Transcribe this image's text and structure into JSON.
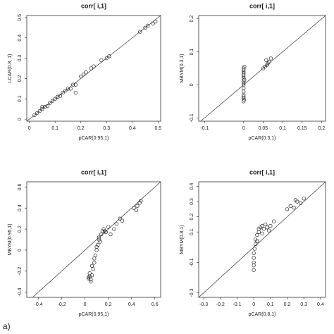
{
  "caption": "a)",
  "chart_data": [
    {
      "type": "scatter",
      "title": "corr[ i,1]",
      "xlabel": "pCAR(0.95,1)",
      "ylabel": "LCAR(0.8, 1)",
      "diagonal": true,
      "color": "#222222",
      "x": [
        0.02,
        0.03,
        0.04,
        0.05,
        0.06,
        0.07,
        0.08,
        0.09,
        0.1,
        0.11,
        0.12,
        0.13,
        0.14,
        0.15,
        0.16,
        0.17,
        0.18,
        0.2,
        0.21,
        0.22,
        0.24,
        0.25,
        0.28,
        0.3,
        0.31,
        0.43,
        0.45,
        0.46,
        0.48,
        0.49,
        0.11,
        0.05,
        0.18
      ],
      "y": [
        0.02,
        0.03,
        0.04,
        0.05,
        0.06,
        0.065,
        0.08,
        0.09,
        0.1,
        0.11,
        0.115,
        0.13,
        0.14,
        0.15,
        0.15,
        0.17,
        0.17,
        0.21,
        0.22,
        0.23,
        0.25,
        0.26,
        0.29,
        0.3,
        0.31,
        0.43,
        0.45,
        0.46,
        0.47,
        0.48,
        0.11,
        0.06,
        0.13
      ],
      "xlim": [
        -0.01,
        0.51
      ],
      "ylim": [
        -0.01,
        0.51
      ],
      "xticks": [
        0.0,
        0.1,
        0.2,
        0.3,
        0.4,
        0.5
      ],
      "yticks": [
        0.0,
        0.1,
        0.2,
        0.3,
        0.4,
        0.5
      ]
    },
    {
      "type": "scatter",
      "title": "corr[ i,1]",
      "xlabel": "pCAR(0.3,1)",
      "ylabel": "MBYM(0.3,1)",
      "diagonal": true,
      "color": "#222222",
      "x": [
        0,
        0,
        0,
        0,
        0,
        0,
        0,
        0,
        0,
        0,
        0,
        0,
        0,
        0,
        0,
        0,
        0.002,
        0.002,
        0.001,
        0.05,
        0.055,
        0.06,
        0.062,
        0.065,
        0.07,
        0.058
      ],
      "y": [
        -0.05,
        -0.04,
        -0.035,
        -0.03,
        -0.02,
        -0.01,
        0.0,
        0.005,
        0.01,
        0.02,
        0.025,
        0.03,
        0.035,
        0.04,
        0.045,
        0.05,
        0.055,
        0.015,
        -0.045,
        0.05,
        0.055,
        0.06,
        0.065,
        0.07,
        0.08,
        0.075
      ],
      "xlim": [
        -0.115,
        0.21
      ],
      "ylim": [
        -0.11,
        0.21
      ],
      "xticks": [
        -0.1,
        0.0,
        0.05,
        0.1,
        0.15,
        0.2
      ],
      "yticks": [
        -0.1,
        0.0,
        0.1,
        0.2
      ]
    },
    {
      "type": "scatter",
      "title": "corr[ i,1]",
      "xlabel": "pCAR(0.95,1)",
      "ylabel": "MBYM(0.95,1)",
      "diagonal": true,
      "color": "#222222",
      "x": [
        0.03,
        0.04,
        0.05,
        0.04,
        0.06,
        0.05,
        0.03,
        0.07,
        0.08,
        0.06,
        0.09,
        0.1,
        0.08,
        0.11,
        0.12,
        0.1,
        0.13,
        0.14,
        0.12,
        0.15,
        0.16,
        0.17,
        0.18,
        0.2,
        0.22,
        0.25,
        0.27,
        0.3,
        0.32,
        0.42,
        0.45,
        0.47,
        0.48,
        0.44
      ],
      "y": [
        -0.27,
        -0.25,
        -0.28,
        -0.22,
        -0.24,
        -0.3,
        -0.26,
        -0.18,
        -0.12,
        -0.15,
        -0.05,
        0.0,
        -0.08,
        0.05,
        0.1,
        0.03,
        0.08,
        0.15,
        0.12,
        0.18,
        0.2,
        0.18,
        0.17,
        0.22,
        0.15,
        0.2,
        0.25,
        0.3,
        0.28,
        0.4,
        0.42,
        0.45,
        0.47,
        0.38
      ],
      "xlim": [
        -0.5,
        0.65
      ],
      "ylim": [
        -0.45,
        0.65
      ],
      "xticks": [
        -0.4,
        -0.2,
        0.0,
        0.2,
        0.4,
        0.6
      ],
      "yticks": [
        -0.4,
        -0.2,
        0.0,
        0.2,
        0.4,
        0.6
      ]
    },
    {
      "type": "scatter",
      "title": "corr[ i,1]",
      "xlabel": "pCAR(0.8,1)",
      "ylabel": "MBYM(0.8,1)",
      "diagonal": true,
      "color": "#222222",
      "x": [
        0,
        0,
        0,
        0,
        0,
        0.005,
        0.01,
        0.01,
        0.02,
        0.02,
        0.03,
        0.03,
        0.04,
        0.05,
        0.05,
        0.06,
        0.07,
        0.08,
        0.09,
        0.1,
        0.12,
        0.2,
        0.22,
        0.24,
        0.26,
        0.28,
        0.3,
        0.25
      ],
      "y": [
        -0.15,
        -0.12,
        -0.1,
        -0.07,
        -0.04,
        -0.01,
        0.02,
        0.05,
        0.04,
        0.08,
        0.1,
        0.12,
        0.13,
        0.14,
        0.09,
        0.12,
        0.15,
        0.13,
        0.11,
        0.14,
        0.17,
        0.25,
        0.27,
        0.26,
        0.3,
        0.29,
        0.32,
        0.31
      ],
      "xlim": [
        -0.33,
        0.43
      ],
      "ylim": [
        -0.33,
        0.43
      ],
      "xticks": [
        -0.3,
        -0.2,
        -0.1,
        0.0,
        0.1,
        0.2,
        0.3,
        0.4
      ],
      "yticks": [
        -0.3,
        -0.1,
        0.1,
        0.2,
        0.3,
        0.4
      ]
    }
  ]
}
